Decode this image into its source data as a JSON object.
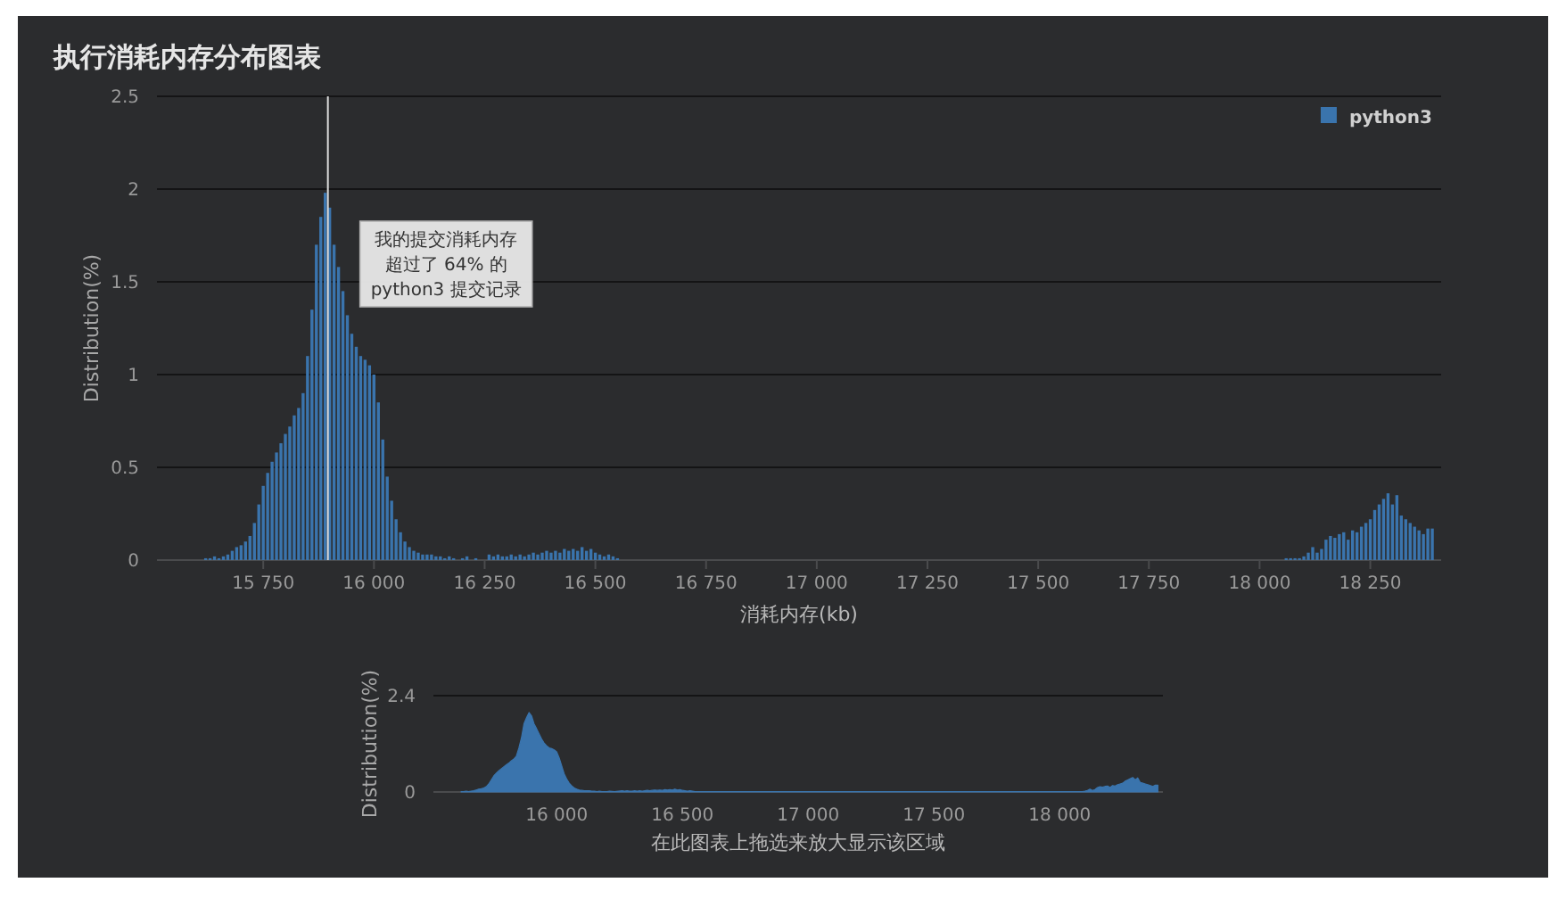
{
  "chart_data": [
    {
      "type": "bar",
      "title": "执行消耗内存分布图表",
      "xlabel": "消耗内存(kb)",
      "ylabel": "Distribution(%)",
      "xlim": [
        15510,
        18410
      ],
      "xticks": [
        {
          "value": 15750,
          "label": "15 750"
        },
        {
          "value": 16000,
          "label": "16 000"
        },
        {
          "value": 16250,
          "label": "16 250"
        },
        {
          "value": 16500,
          "label": "16 500"
        },
        {
          "value": 16750,
          "label": "16 750"
        },
        {
          "value": 17000,
          "label": "17 000"
        },
        {
          "value": 17250,
          "label": "17 250"
        },
        {
          "value": 17500,
          "label": "17 500"
        },
        {
          "value": 17750,
          "label": "17 750"
        },
        {
          "value": 18000,
          "label": "18 000"
        },
        {
          "value": 18250,
          "label": "18 250"
        }
      ],
      "ylim": [
        0,
        2.5
      ],
      "yticks": [
        0,
        0.5,
        1,
        1.5,
        2,
        2.5
      ],
      "grid": "y",
      "legend": "top right",
      "x": [
        15620,
        15630,
        15640,
        15650,
        15660,
        15670,
        15680,
        15690,
        15700,
        15710,
        15720,
        15730,
        15740,
        15750,
        15760,
        15770,
        15780,
        15790,
        15800,
        15810,
        15820,
        15830,
        15840,
        15850,
        15860,
        15870,
        15880,
        15890,
        15900,
        15910,
        15920,
        15930,
        15940,
        15950,
        15960,
        15970,
        15980,
        15990,
        16000,
        16010,
        16020,
        16030,
        16040,
        16050,
        16060,
        16070,
        16080,
        16090,
        16100,
        16110,
        16120,
        16130,
        16140,
        16150,
        16160,
        16170,
        16180,
        16200,
        16210,
        16230,
        16260,
        16270,
        16280,
        16290,
        16300,
        16310,
        16320,
        16330,
        16340,
        16350,
        16360,
        16370,
        16380,
        16390,
        16400,
        16410,
        16420,
        16430,
        16440,
        16450,
        16460,
        16470,
        16480,
        16490,
        16500,
        16510,
        16520,
        16530,
        16540,
        16550,
        18060,
        18070,
        18080,
        18090,
        18100,
        18110,
        18120,
        18130,
        18140,
        18150,
        18160,
        18170,
        18180,
        18190,
        18200,
        18210,
        18220,
        18230,
        18240,
        18250,
        18260,
        18270,
        18280,
        18290,
        18300,
        18310,
        18320,
        18330,
        18340,
        18350,
        18360,
        18370,
        18380,
        18390
      ],
      "series": [
        {
          "name": "python3",
          "color": "#3a74ad",
          "values": [
            0.01,
            0.01,
            0.02,
            0.01,
            0.02,
            0.03,
            0.05,
            0.07,
            0.08,
            0.1,
            0.13,
            0.2,
            0.3,
            0.4,
            0.47,
            0.53,
            0.58,
            0.63,
            0.68,
            0.72,
            0.78,
            0.82,
            0.9,
            1.1,
            1.35,
            1.7,
            1.85,
            1.98,
            1.9,
            1.7,
            1.58,
            1.45,
            1.32,
            1.22,
            1.15,
            1.1,
            1.08,
            1.05,
            1.0,
            0.85,
            0.65,
            0.45,
            0.32,
            0.22,
            0.15,
            0.1,
            0.07,
            0.05,
            0.04,
            0.03,
            0.03,
            0.03,
            0.02,
            0.02,
            0.01,
            0.02,
            0.01,
            0.01,
            0.02,
            0.01,
            0.03,
            0.02,
            0.03,
            0.02,
            0.02,
            0.03,
            0.02,
            0.03,
            0.02,
            0.03,
            0.04,
            0.03,
            0.04,
            0.05,
            0.04,
            0.05,
            0.04,
            0.06,
            0.05,
            0.06,
            0.05,
            0.07,
            0.05,
            0.06,
            0.04,
            0.03,
            0.02,
            0.03,
            0.02,
            0.01,
            0.01,
            0.01,
            0.01,
            0.01,
            0.02,
            0.04,
            0.07,
            0.04,
            0.06,
            0.11,
            0.13,
            0.12,
            0.14,
            0.15,
            0.11,
            0.16,
            0.15,
            0.18,
            0.2,
            0.22,
            0.27,
            0.3,
            0.33,
            0.36,
            0.3,
            0.35,
            0.24,
            0.22,
            0.2,
            0.18,
            0.16,
            0.14,
            0.17,
            0.17
          ]
        }
      ],
      "ref_lines": [
        {
          "axis": "x",
          "value": 15896,
          "label": "我的提交消耗内存超过了 64% 的 python3 提交记录",
          "color": "#dcdcdc"
        }
      ]
    },
    {
      "type": "area",
      "xlabel": "在此图表上拖选来放大显示该区域",
      "ylabel": "Distribution(%)",
      "xlim": [
        15510,
        18410
      ],
      "xticks": [
        {
          "value": 16000,
          "label": "16 000"
        },
        {
          "value": 16500,
          "label": "16 500"
        },
        {
          "value": 17000,
          "label": "17 000"
        },
        {
          "value": 17500,
          "label": "17 500"
        },
        {
          "value": 18000,
          "label": "18 000"
        }
      ],
      "ylim": [
        0,
        2.4
      ],
      "yticks": [
        0,
        2.4
      ],
      "x": [
        15620,
        15630,
        15640,
        15650,
        15660,
        15670,
        15680,
        15690,
        15700,
        15710,
        15720,
        15730,
        15740,
        15750,
        15760,
        15770,
        15780,
        15790,
        15800,
        15810,
        15820,
        15830,
        15840,
        15850,
        15860,
        15870,
        15880,
        15890,
        15900,
        15910,
        15920,
        15930,
        15940,
        15950,
        15960,
        15970,
        15980,
        15990,
        16000,
        16010,
        16020,
        16030,
        16040,
        16050,
        16060,
        16070,
        16080,
        16090,
        16100,
        16110,
        16120,
        16130,
        16140,
        16150,
        16160,
        16170,
        16180,
        16200,
        16210,
        16230,
        16260,
        16270,
        16280,
        16290,
        16300,
        16310,
        16320,
        16330,
        16340,
        16350,
        16360,
        16370,
        16380,
        16390,
        16400,
        16410,
        16420,
        16430,
        16440,
        16450,
        16460,
        16470,
        16480,
        16490,
        16500,
        16510,
        16520,
        16530,
        16540,
        16550,
        18060,
        18070,
        18080,
        18090,
        18100,
        18110,
        18120,
        18130,
        18140,
        18150,
        18160,
        18170,
        18180,
        18190,
        18200,
        18210,
        18220,
        18230,
        18240,
        18250,
        18260,
        18270,
        18280,
        18290,
        18300,
        18310,
        18320,
        18330,
        18340,
        18350,
        18360,
        18370,
        18380,
        18390
      ],
      "series": [
        {
          "color": "#3a74ad",
          "values": [
            0.01,
            0.01,
            0.02,
            0.01,
            0.02,
            0.03,
            0.05,
            0.07,
            0.08,
            0.1,
            0.13,
            0.2,
            0.3,
            0.4,
            0.47,
            0.53,
            0.58,
            0.63,
            0.68,
            0.72,
            0.78,
            0.82,
            0.9,
            1.1,
            1.35,
            1.7,
            1.85,
            1.98,
            1.9,
            1.7,
            1.58,
            1.45,
            1.32,
            1.22,
            1.15,
            1.1,
            1.08,
            1.05,
            1.0,
            0.85,
            0.65,
            0.45,
            0.32,
            0.22,
            0.15,
            0.1,
            0.07,
            0.05,
            0.04,
            0.03,
            0.03,
            0.03,
            0.02,
            0.02,
            0.01,
            0.02,
            0.01,
            0.01,
            0.02,
            0.01,
            0.03,
            0.02,
            0.03,
            0.02,
            0.02,
            0.03,
            0.02,
            0.03,
            0.02,
            0.03,
            0.04,
            0.03,
            0.04,
            0.05,
            0.04,
            0.05,
            0.04,
            0.06,
            0.05,
            0.06,
            0.05,
            0.07,
            0.05,
            0.06,
            0.04,
            0.03,
            0.02,
            0.03,
            0.02,
            0.01,
            0.01,
            0.01,
            0.01,
            0.01,
            0.02,
            0.04,
            0.07,
            0.04,
            0.06,
            0.11,
            0.13,
            0.12,
            0.14,
            0.15,
            0.11,
            0.16,
            0.15,
            0.18,
            0.2,
            0.22,
            0.27,
            0.3,
            0.33,
            0.36,
            0.3,
            0.35,
            0.24,
            0.22,
            0.2,
            0.18,
            0.16,
            0.14,
            0.17,
            0.17
          ]
        }
      ]
    }
  ]
}
